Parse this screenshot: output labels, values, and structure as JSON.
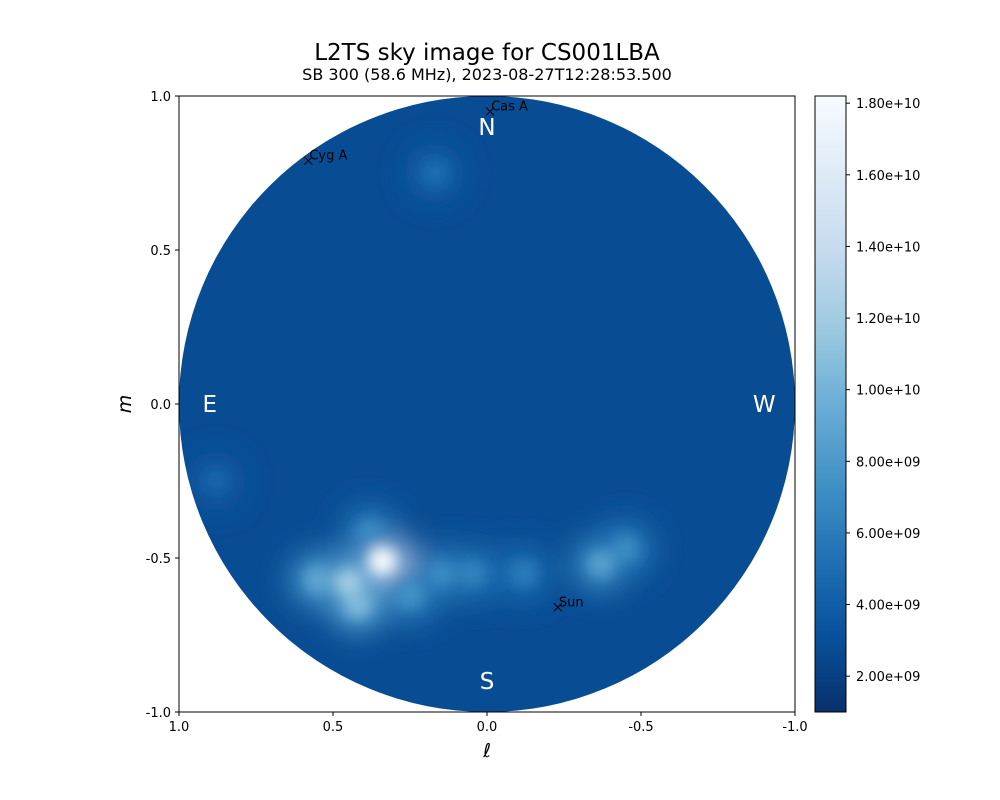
{
  "chart_data": {
    "type": "heatmap",
    "title": "L2TS sky image for CS001LBA",
    "subtitle": "SB 300 (58.6 MHz), 2023-08-27T12:28:53.500",
    "xlabel": "ℓ",
    "ylabel": "m",
    "xlim": [
      1.0,
      -1.0
    ],
    "ylim": [
      -1.0,
      1.0
    ],
    "x_ticks": [
      1.0,
      0.5,
      0.0,
      -0.5,
      -1.0
    ],
    "x_tick_labels": [
      "1.0",
      "0.5",
      "0.0",
      "-0.5",
      "-1.0"
    ],
    "y_ticks": [
      1.0,
      0.5,
      0.0,
      -0.5,
      -1.0
    ],
    "y_tick_labels": [
      "1.0",
      "0.5",
      "0.0",
      "-0.5",
      "-1.0"
    ],
    "colormap": "Blues_r",
    "colorbar": {
      "range": [
        1000000000.0,
        18200000000.0
      ],
      "ticks": [
        2000000000.0,
        4000000000.0,
        6000000000.0,
        8000000000.0,
        10000000000.0,
        12000000000.0,
        14000000000.0,
        16000000000.0,
        18000000000.0
      ],
      "tick_labels": [
        "2.00e+09",
        "4.00e+09",
        "6.00e+09",
        "8.00e+09",
        "1.00e+10",
        "1.20e+10",
        "1.40e+10",
        "1.60e+10",
        "1.80e+10"
      ]
    },
    "background_level": 2800000000.0,
    "bright_regions": [
      {
        "l": 0.34,
        "m": -0.51,
        "peak": 18000000000.0
      },
      {
        "l": 0.45,
        "m": -0.58,
        "peak": 12000000000.0
      },
      {
        "l": 0.42,
        "m": -0.65,
        "peak": 10500000000.0
      },
      {
        "l": 0.55,
        "m": -0.57,
        "peak": 9000000000.0
      },
      {
        "l": 0.38,
        "m": -0.42,
        "peak": 7000000000.0
      },
      {
        "l": 0.25,
        "m": -0.62,
        "peak": 7500000000.0
      },
      {
        "l": 0.15,
        "m": -0.55,
        "peak": 7000000000.0
      },
      {
        "l": 0.05,
        "m": -0.55,
        "peak": 6500000000.0
      },
      {
        "l": -0.12,
        "m": -0.55,
        "peak": 6000000000.0
      },
      {
        "l": -0.37,
        "m": -0.52,
        "peak": 8500000000.0
      },
      {
        "l": -0.45,
        "m": -0.47,
        "peak": 7000000000.0
      },
      {
        "l": 0.17,
        "m": 0.75,
        "peak": 5000000000.0
      },
      {
        "l": 0.88,
        "m": -0.25,
        "peak": 4500000000.0
      }
    ],
    "sources": [
      {
        "name": "Cas A",
        "l": -0.01,
        "m": 0.95
      },
      {
        "name": "Cyg A",
        "l": 0.58,
        "m": 0.79
      },
      {
        "name": "Sun",
        "l": -0.23,
        "m": -0.66
      }
    ],
    "compass": [
      {
        "label": "N",
        "l": 0.0,
        "m": 0.9
      },
      {
        "label": "S",
        "l": 0.0,
        "m": -0.9
      },
      {
        "label": "E",
        "l": 0.9,
        "m": 0.0
      },
      {
        "label": "W",
        "l": -0.9,
        "m": 0.0
      }
    ]
  }
}
